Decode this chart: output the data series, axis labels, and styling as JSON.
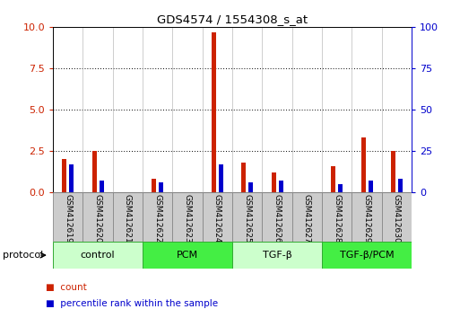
{
  "title": "GDS4574 / 1554308_s_at",
  "samples": [
    "GSM412619",
    "GSM412620",
    "GSM412621",
    "GSM412622",
    "GSM412623",
    "GSM412624",
    "GSM412625",
    "GSM412626",
    "GSM412627",
    "GSM412628",
    "GSM412629",
    "GSM412630"
  ],
  "count_values": [
    2.0,
    2.5,
    0.0,
    0.8,
    0.0,
    9.7,
    1.8,
    1.2,
    0.0,
    1.6,
    3.3,
    2.5
  ],
  "percentile_values": [
    17,
    7,
    0,
    6,
    0,
    17,
    6,
    7,
    0,
    5,
    7,
    8
  ],
  "count_color": "#cc2200",
  "percentile_color": "#0000cc",
  "bar_bg_color": "#cccccc",
  "plot_bg": "#ffffff",
  "ylim_left": [
    0,
    10
  ],
  "ylim_right": [
    0,
    100
  ],
  "yticks_left": [
    0,
    2.5,
    5,
    7.5,
    10
  ],
  "yticks_right": [
    0,
    25,
    50,
    75,
    100
  ],
  "groups": [
    {
      "label": "control",
      "start": 0,
      "end": 3,
      "color": "#ccffcc"
    },
    {
      "label": "PCM",
      "start": 3,
      "end": 6,
      "color": "#44ee44"
    },
    {
      "label": "TGF-β",
      "start": 6,
      "end": 9,
      "color": "#ccffcc"
    },
    {
      "label": "TGF-β/PCM",
      "start": 9,
      "end": 12,
      "color": "#44ee44"
    }
  ],
  "protocol_label": "protocol",
  "legend_count": "count",
  "legend_pct": "percentile rank within the sample",
  "tick_color_left": "#cc2200",
  "tick_color_right": "#0000cc",
  "grid_linestyle": "dotted",
  "grid_color": "#000000"
}
